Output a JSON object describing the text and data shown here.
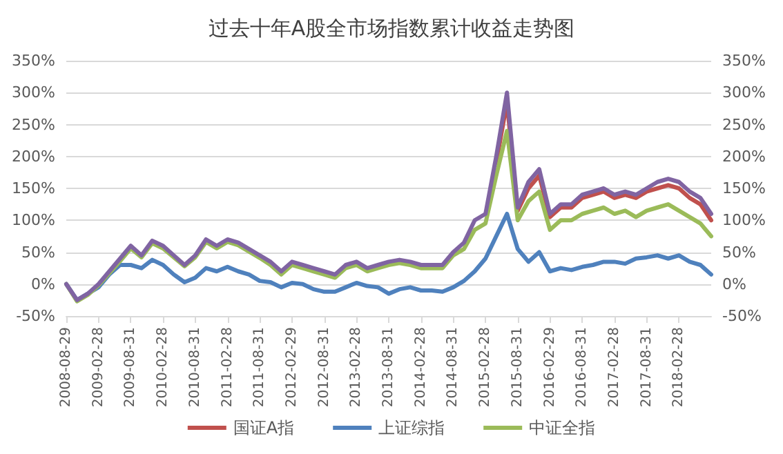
{
  "chart_data": {
    "type": "line",
    "title": "过去十年A股全市场指数累计收益走势图",
    "categories": [
      "2008-08-29",
      null,
      null,
      "2009-02-28",
      null,
      null,
      "2009-08-31",
      null,
      null,
      "2010-02-28",
      null,
      null,
      "2010-08-31",
      null,
      null,
      "2011-02-28",
      null,
      null,
      "2011-08-31",
      null,
      null,
      "2012-02-29",
      null,
      null,
      "2012-08-31",
      null,
      null,
      "2013-02-28",
      null,
      null,
      "2013-08-31",
      null,
      null,
      "2014-02-28",
      null,
      null,
      "2014-08-31",
      null,
      null,
      "2015-02-28",
      null,
      null,
      "2015-08-31",
      null,
      null,
      "2016-02-29",
      null,
      null,
      "2016-08-31",
      null,
      null,
      "2017-02-28",
      null,
      null,
      "2017-08-31",
      null,
      null,
      "2018-02-28",
      null,
      null,
      null
    ],
    "series": [
      {
        "name": "国证A指",
        "color": "#c0504d",
        "values": [
          null,
          null,
          null,
          null,
          null,
          null,
          null,
          null,
          null,
          null,
          null,
          null,
          null,
          null,
          null,
          null,
          null,
          null,
          null,
          null,
          null,
          null,
          null,
          null,
          null,
          null,
          null,
          null,
          null,
          null,
          null,
          null,
          null,
          null,
          null,
          null,
          null,
          null,
          null,
          null,
          190,
          285,
          115,
          150,
          170,
          105,
          120,
          120,
          135,
          140,
          145,
          135,
          140,
          135,
          145,
          150,
          155,
          150,
          135,
          125,
          100
        ]
      },
      {
        "name": "上证综指",
        "color": "#4f81bd",
        "values": [
          0,
          -25,
          -15,
          -5,
          15,
          30,
          30,
          25,
          38,
          30,
          15,
          3,
          10,
          25,
          20,
          27,
          20,
          15,
          5,
          3,
          -5,
          2,
          0,
          -8,
          -12,
          -12,
          -5,
          2,
          -3,
          -5,
          -15,
          -8,
          -5,
          -10,
          -10,
          -12,
          -5,
          5,
          20,
          40,
          75,
          110,
          55,
          35,
          50,
          20,
          25,
          22,
          27,
          30,
          35,
          35,
          32,
          40,
          42,
          45,
          40,
          45,
          35,
          30,
          15
        ]
      },
      {
        "name": "中证全指",
        "color": "#9bbb59",
        "values": [
          0,
          -27,
          -17,
          -2,
          17,
          36,
          56,
          42,
          64,
          56,
          42,
          28,
          42,
          66,
          56,
          66,
          61,
          51,
          41,
          30,
          15,
          30,
          25,
          20,
          15,
          10,
          25,
          30,
          20,
          25,
          30,
          33,
          30,
          25,
          25,
          25,
          45,
          55,
          85,
          95,
          170,
          240,
          100,
          130,
          145,
          85,
          100,
          100,
          110,
          115,
          120,
          110,
          115,
          105,
          115,
          120,
          125,
          115,
          105,
          95,
          75
        ]
      },
      {
        "color": "#8064a2",
        "values": [
          0,
          -25,
          -15,
          0,
          20,
          40,
          60,
          45,
          68,
          60,
          45,
          30,
          45,
          70,
          60,
          70,
          65,
          55,
          45,
          35,
          20,
          35,
          30,
          25,
          20,
          15,
          30,
          35,
          25,
          30,
          35,
          38,
          35,
          30,
          30,
          30,
          50,
          65,
          100,
          110,
          200,
          300,
          120,
          160,
          180,
          110,
          125,
          125,
          140,
          145,
          150,
          140,
          145,
          140,
          150,
          160,
          165,
          160,
          145,
          135,
          110
        ]
      }
    ],
    "ylim": [
      -50,
      350
    ],
    "yticks": [
      {
        "value": -50,
        "label": "-50%"
      },
      {
        "value": 0,
        "label": "0%"
      },
      {
        "value": 50,
        "label": "50%"
      },
      {
        "value": 100,
        "label": "100%"
      },
      {
        "value": 150,
        "label": "150%"
      },
      {
        "value": 200,
        "label": "200%"
      },
      {
        "value": 250,
        "label": "250%"
      },
      {
        "value": 300,
        "label": "300%"
      },
      {
        "value": 350,
        "label": "350%"
      }
    ],
    "y2lim": [
      -50,
      350
    ],
    "y2ticks": [
      {
        "value": -50,
        "label": "-50%"
      },
      {
        "value": 0,
        "label": "0%"
      },
      {
        "value": 50,
        "label": "50%"
      },
      {
        "value": 100,
        "label": "100%"
      },
      {
        "value": 150,
        "label": "150%"
      },
      {
        "value": 200,
        "label": "200%"
      },
      {
        "value": 250,
        "label": "250%"
      },
      {
        "value": 300,
        "label": "300%"
      },
      {
        "value": 350,
        "label": "350%"
      }
    ],
    "grid": "y",
    "legend": "bottom",
    "marker": "none",
    "line_style": "solid"
  }
}
